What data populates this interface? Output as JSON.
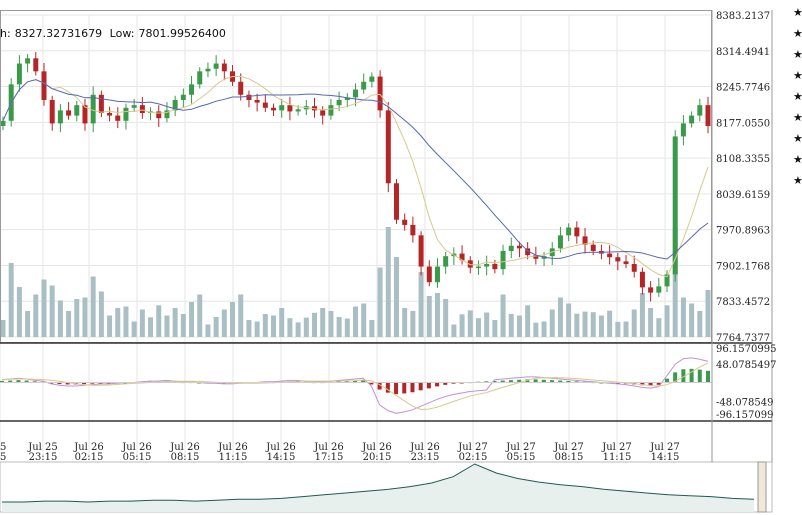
{
  "header": {
    "high_label": "h:",
    "high_value": "8327.32731679",
    "low_label": "Low:",
    "low_value": "7801.99526400"
  },
  "price_axis_ticks": [
    "8383.2137",
    "8314.4941",
    "8245.7746",
    "8177.0550",
    "8108.3355",
    "8039.6159",
    "7970.8963",
    "7902.1768",
    "7833.4572",
    "7764.7377"
  ],
  "macd_axis_ticks": [
    "96.1570995",
    "48.0785497",
    "-48.078549",
    "-96.157099"
  ],
  "time_axis": [
    {
      "day": "25",
      "time": "15"
    },
    {
      "day": "Jul 25",
      "time": "23:15"
    },
    {
      "day": "Jul 26",
      "time": "02:15"
    },
    {
      "day": "Jul 26",
      "time": "05:15"
    },
    {
      "day": "Jul 26",
      "time": "08:15"
    },
    {
      "day": "Jul 26",
      "time": "11:15"
    },
    {
      "day": "Jul 26",
      "time": "14:15"
    },
    {
      "day": "Jul 26",
      "time": "17:15"
    },
    {
      "day": "Jul 26",
      "time": "20:15"
    },
    {
      "day": "Jul 26",
      "time": "23:15"
    },
    {
      "day": "Jul 27",
      "time": "02:15"
    },
    {
      "day": "Jul 27",
      "time": "05:15"
    },
    {
      "day": "Jul 27",
      "time": "08:15"
    },
    {
      "day": "Jul 27",
      "time": "11:15"
    },
    {
      "day": "Jul 27",
      "time": "14:15"
    }
  ],
  "sidebar": {
    "icon_names": [
      "star-icon",
      "star-icon",
      "star-icon",
      "star-icon",
      "star-icon",
      "star-icon",
      "star-icon",
      "star-icon",
      "star-icon"
    ]
  },
  "colors": {
    "up": "#3a9a4a",
    "down": "#b52525",
    "volume": "#a9bfc4",
    "ma_fast": "#d8c98a",
    "ma_slow": "#5566b8",
    "macd_line": "#c490d8",
    "signal_line": "#d8c98a",
    "nav_line": "#1f5a52",
    "grid": "#e6e6e6"
  },
  "chart_data": [
    {
      "type": "candlestick",
      "title": "",
      "ylim": [
        7764.7377,
        8383.2137
      ],
      "x_labels": [
        "Jul 25 23:15",
        "Jul 26 02:15",
        "Jul 26 05:15",
        "Jul 26 08:15",
        "Jul 26 11:15",
        "Jul 26 14:15",
        "Jul 26 17:15",
        "Jul 26 20:15",
        "Jul 26 23:15",
        "Jul 27 02:15",
        "Jul 27 05:15",
        "Jul 27 08:15",
        "Jul 27 11:15",
        "Jul 27 14:15"
      ],
      "close_series": [
        8180,
        8250,
        8290,
        8300,
        8275,
        8220,
        8175,
        8200,
        8190,
        8210,
        8175,
        8230,
        8195,
        8190,
        8180,
        8205,
        8210,
        8195,
        8198,
        8185,
        8200,
        8220,
        8230,
        8250,
        8275,
        8280,
        8290,
        8275,
        8255,
        8230,
        8220,
        8215,
        8205,
        8200,
        8210,
        8198,
        8202,
        8208,
        8200,
        8190,
        8210,
        8220,
        8225,
        8240,
        8255,
        8265,
        8200,
        8060,
        7990,
        7980,
        7960,
        7900,
        7870,
        7900,
        7920,
        7925,
        7912,
        7898,
        7900,
        7905,
        7895,
        7930,
        7940,
        7935,
        7922,
        7915,
        7920,
        7935,
        7960,
        7975,
        7958,
        7942,
        7930,
        7925,
        7918,
        7910,
        7905,
        7890,
        7860,
        7850,
        7862,
        7885,
        8150,
        8175,
        8190,
        8210,
        8170
      ],
      "series": [
        {
          "name": "",
          "kind": "moving_average_fast"
        },
        {
          "name": "",
          "kind": "moving_average_slow"
        },
        {
          "name": "",
          "kind": "volume"
        }
      ]
    },
    {
      "type": "bar",
      "title": "",
      "ylim": [
        -96.157099,
        96.1570995
      ],
      "histogram": [
        4,
        5,
        6,
        5,
        3,
        2,
        -2,
        -4,
        -5,
        -5,
        -4,
        -3,
        -2,
        -2,
        -1,
        0,
        0,
        1,
        2,
        2,
        3,
        2,
        1,
        1,
        0,
        -1,
        -1,
        -2,
        -2,
        -1,
        0,
        0,
        1,
        1,
        2,
        3,
        3,
        2,
        1,
        1,
        2,
        3,
        4,
        5,
        6,
        -5,
        -18,
        -26,
        -30,
        -28,
        -25,
        -20,
        -15,
        -10,
        -6,
        -3,
        -1,
        1,
        2,
        3,
        4,
        5,
        6,
        7,
        8,
        8,
        7,
        6,
        5,
        4,
        3,
        2,
        1,
        0,
        -1,
        -2,
        -3,
        -5,
        -7,
        -8,
        -6,
        10,
        26,
        34,
        35,
        33,
        30
      ],
      "series": [
        {
          "name": "",
          "kind": "histogram"
        },
        {
          "name": "",
          "kind": "macd_line"
        },
        {
          "name": "",
          "kind": "signal_line"
        }
      ]
    },
    {
      "type": "line",
      "title": "",
      "kind": "navigator",
      "values": [
        100,
        100,
        101,
        101,
        100,
        101,
        101,
        102,
        102,
        101,
        102,
        103,
        103,
        104,
        106,
        108,
        110,
        112,
        114,
        117,
        121,
        128,
        142,
        132,
        126,
        122,
        119,
        117,
        114,
        112,
        110,
        108,
        107,
        106,
        104,
        103
      ]
    }
  ]
}
